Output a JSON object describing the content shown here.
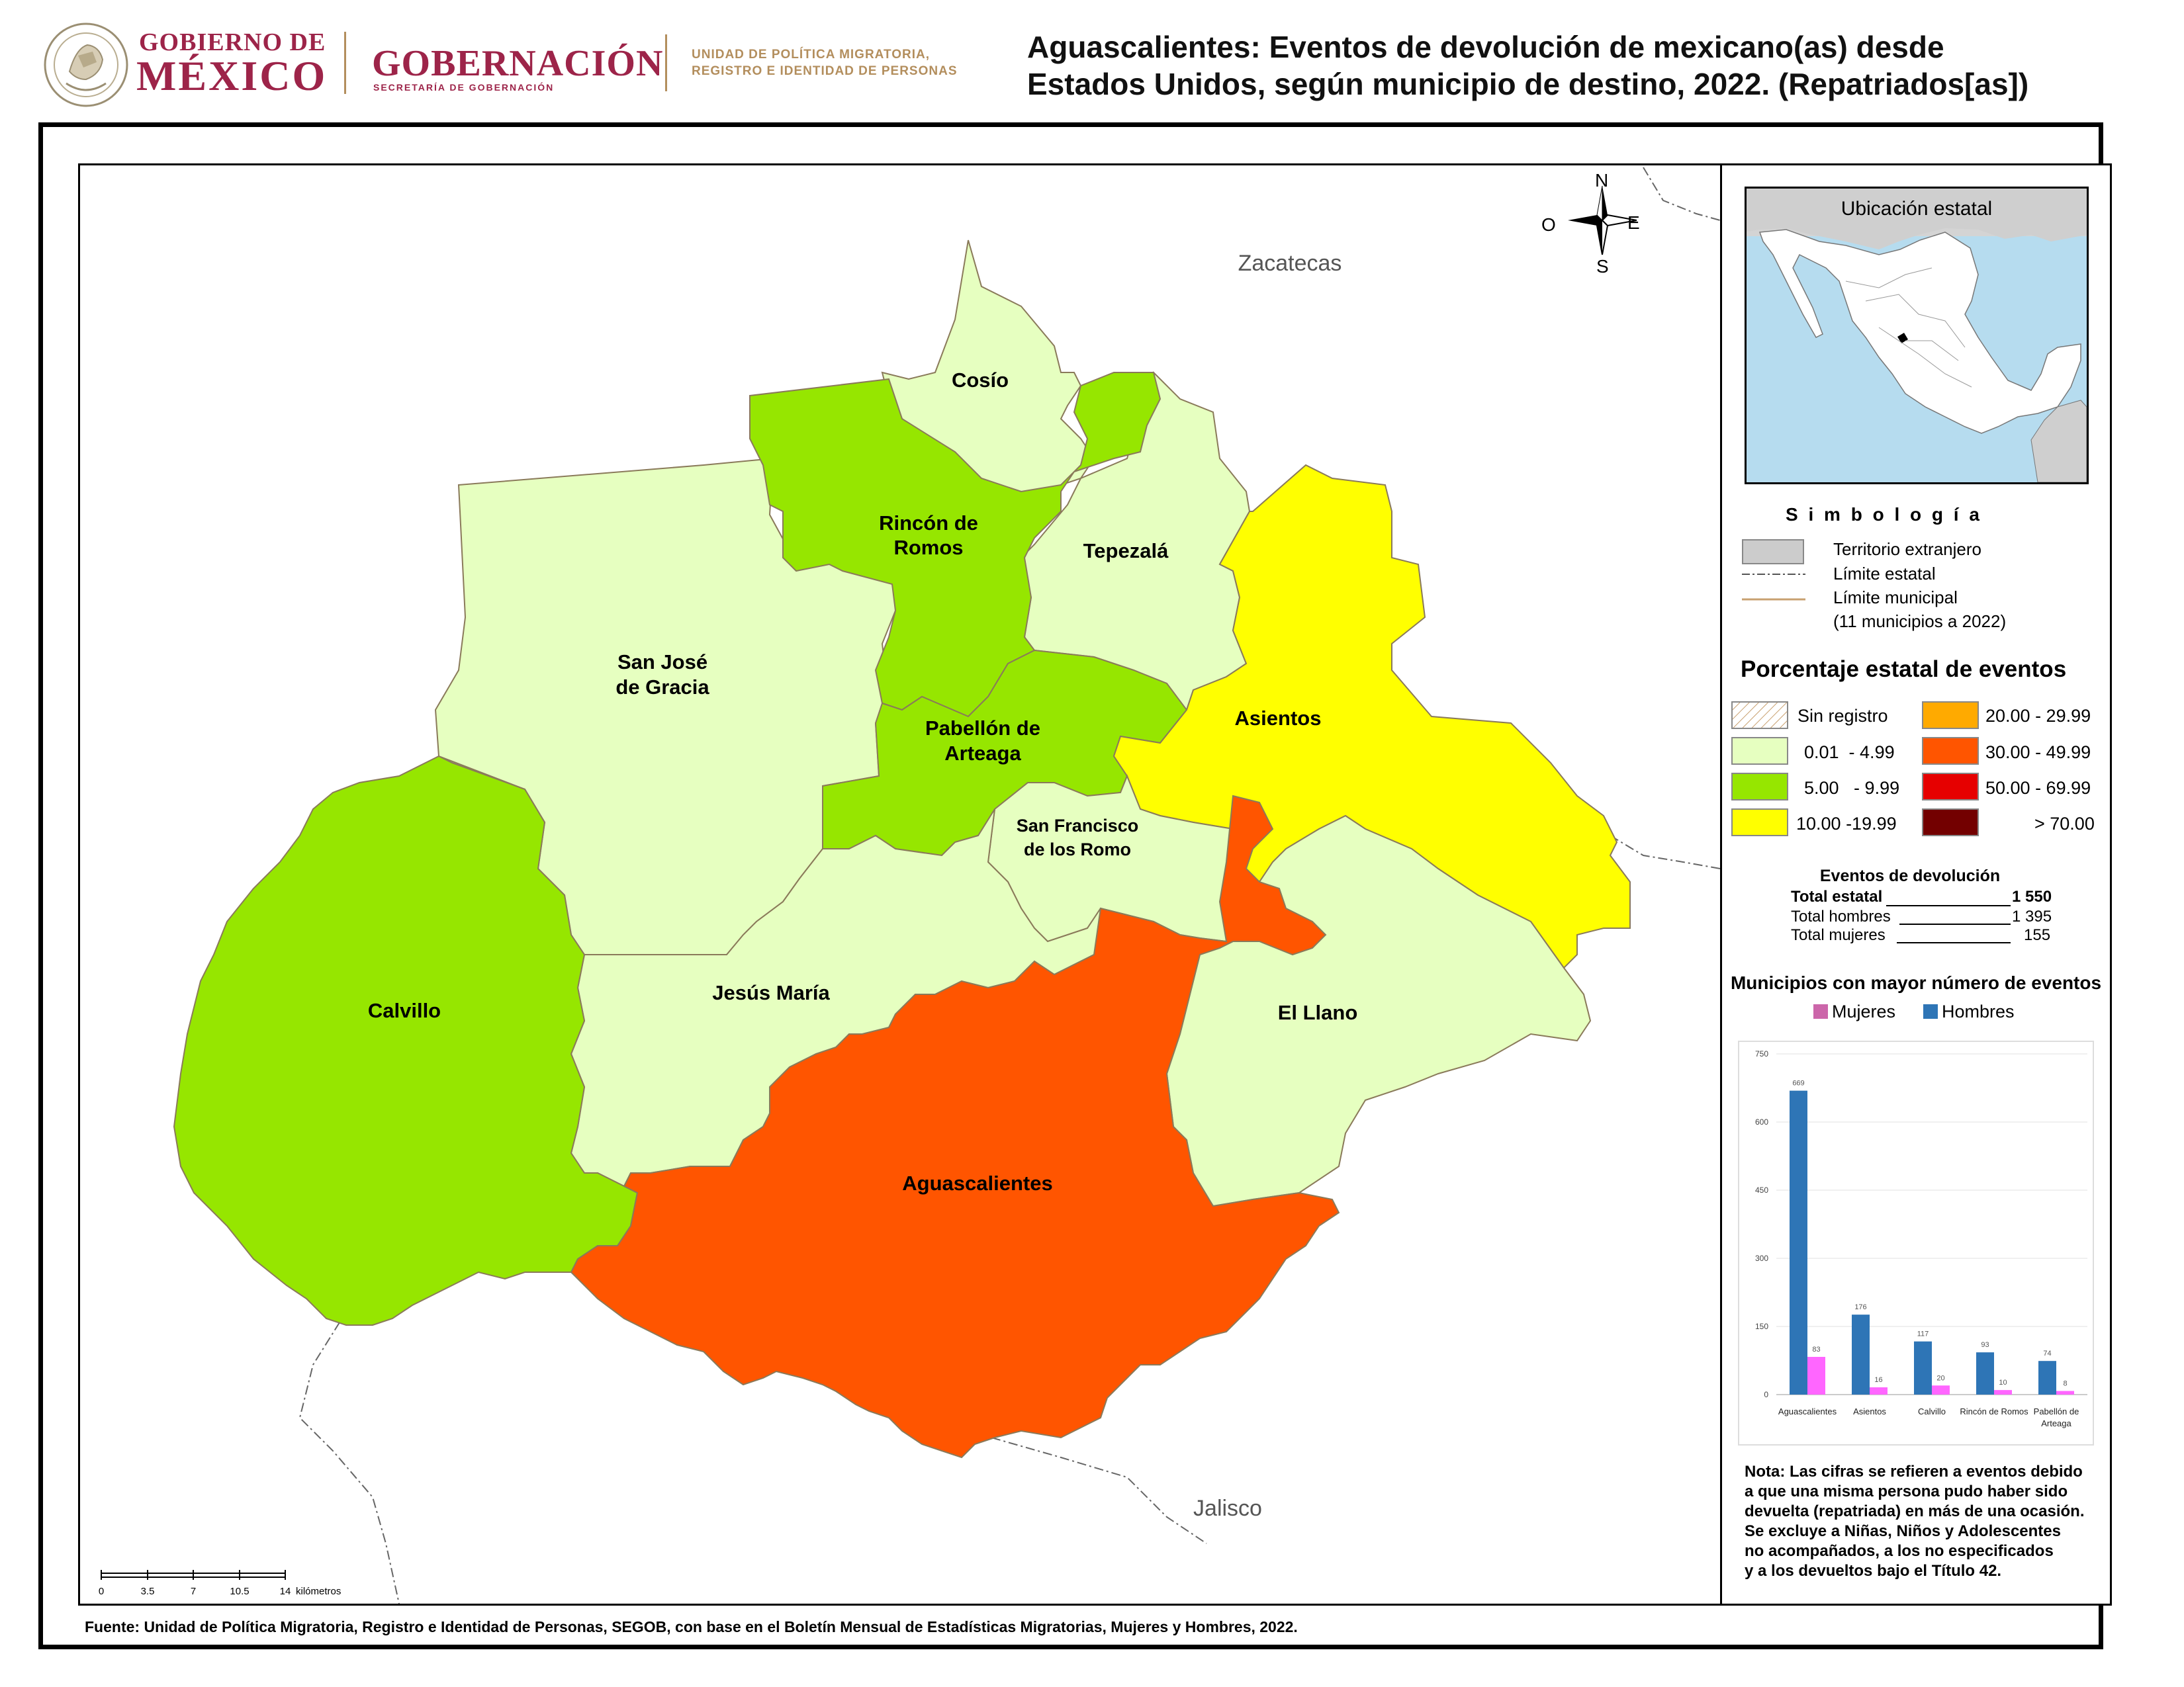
{
  "header": {
    "gob_line1": "GOBIERNO DE",
    "gob_line2": "MÉXICO",
    "gobernacion": "GOBERNACIÓN",
    "secretaria": "SECRETARÍA DE GOBERNACIÓN",
    "unidad_line1": "UNIDAD DE POLÍTICA MIGRATORIA,",
    "unidad_line2": "REGISTRO E IDENTIDAD DE PERSONAS",
    "seal_text": "ESTADOS UNIDOS MEXICANOS",
    "title_line1": "Aguascalientes: Eventos de devolución de mexicano(as) desde",
    "title_line2": "Estados Unidos, según municipio de destino, 2022. (Repatriados[as])",
    "brand_color": "#9d2449",
    "gold_color": "#b38e5d"
  },
  "map": {
    "neighbors": {
      "north": "Zacatecas",
      "south": "Jalisco"
    },
    "compass": {
      "n": "N",
      "s": "S",
      "e": "E",
      "w": "O"
    },
    "scale": {
      "ticks": [
        "0",
        "3.5",
        "7",
        "10.5",
        "14"
      ],
      "unit": "kilómetros"
    },
    "municipalities": [
      {
        "name": "Cosío",
        "category": "0.01 - 4.99"
      },
      {
        "name": "Rincón de Romos",
        "category": "5.00 - 9.99"
      },
      {
        "name": "Tepezalá",
        "category": "0.01 - 4.99"
      },
      {
        "name": "San José de Gracia",
        "category": "0.01 - 4.99"
      },
      {
        "name": "Pabellón de Arteaga",
        "category": "5.00 - 9.99"
      },
      {
        "name": "Asientos",
        "category": "10.00 -19.99"
      },
      {
        "name": "San Francisco de los Romo",
        "category": "0.01 - 4.99"
      },
      {
        "name": "Calvillo",
        "category": "5.00 - 9.99"
      },
      {
        "name": "Jesús María",
        "category": "0.01 - 4.99"
      },
      {
        "name": "El Llano",
        "category": "0.01 - 4.99"
      },
      {
        "name": "Aguascalientes",
        "category": "30.00 - 49.99"
      }
    ],
    "labels": {
      "cosio": "Cosío",
      "rincon_1": "Rincón de",
      "rincon_2": "Romos",
      "tepezala": "Tepezalá",
      "sanjose_1": "San José",
      "sanjose_2": "de Gracia",
      "pabellon_1": "Pabellón de",
      "pabellon_2": "Arteaga",
      "asientos": "Asientos",
      "sanfrancisco_1": "San Francisco",
      "sanfrancisco_2": "de los Romo",
      "calvillo": "Calvillo",
      "jesusmaria": "Jesús María",
      "elllano": "El Llano",
      "aguascalientes": "Aguascalientes"
    }
  },
  "inset": {
    "title": "Ubicación estatal"
  },
  "legend": {
    "title": "S i m b o l o g í a",
    "foreign": "Territorio extranjero",
    "state_limit": "Límite estatal",
    "municipal_limit": "Límite municipal",
    "municipal_count": "(11 municipios a 2022)",
    "pct_title": "Porcentaje estatal de eventos",
    "classes": [
      {
        "label": "Sin registro",
        "color": "hatch"
      },
      {
        "label": "0.01  - 4.99",
        "color": "#e6ffc0"
      },
      {
        "label": "5.00   - 9.99",
        "color": "#96e600"
      },
      {
        "label": "10.00 -19.99",
        "color": "#ffff00"
      },
      {
        "label": "20.00 - 29.99",
        "color": "#ffaa00"
      },
      {
        "label": "30.00 - 49.99",
        "color": "#ff5500"
      },
      {
        "label": "50.00 - 69.99",
        "color": "#e60000"
      },
      {
        "label": "> 70.00",
        "color": "#730000"
      }
    ]
  },
  "totals": {
    "title": "Eventos de devolución",
    "total_label": "Total estatal",
    "total_value": "1 550",
    "men_label": "Total hombres",
    "men_value": "1 395",
    "women_label": "Total mujeres",
    "women_value": "155"
  },
  "chart_title": "Municipios con mayor número de eventos",
  "chart_data": {
    "type": "bar",
    "categories": [
      "Aguascalientes",
      "Asientos",
      "Calvillo",
      "Rincón de Romos",
      "Pabellón de Arteaga"
    ],
    "series": [
      {
        "name": "Hombres",
        "values": [
          669,
          176,
          117,
          93,
          74
        ],
        "color": "#2e75b6"
      },
      {
        "name": "Mujeres",
        "values": [
          83,
          16,
          20,
          10,
          8
        ],
        "color": "#ff66ff"
      }
    ],
    "ylim": [
      0,
      750
    ],
    "yticks": [
      0,
      150,
      300,
      450,
      600,
      750
    ],
    "legend_order": [
      "Mujeres",
      "Hombres"
    ],
    "legend_swatch_mujeres": "#cc66aa",
    "legend_position": "top"
  },
  "note": "Nota: Las cifras se refieren a eventos debido a que una misma persona pudo haber sido devuelta (repatriada) en más de una ocasión. Se excluye a Niñas, Niños y Adolescentes no acompañados, a los no especificados y a los devueltos bajo el Título 42.",
  "note_lines": [
    "Nota: Las cifras se refieren a eventos debido",
    "a que una misma persona pudo haber sido",
    "devuelta (repatriada) en más de una ocasión.",
    "Se excluye a Niñas, Niños y Adolescentes",
    "no acompañados, a los no especificados",
    "y a los devueltos bajo el Título 42."
  ],
  "source": "Fuente: Unidad de Política Migratoria, Registro e Identidad de Personas, SEGOB, con base en el Boletín Mensual de Estadísticas Migratorias, Mujeres y Hombres, 2022."
}
